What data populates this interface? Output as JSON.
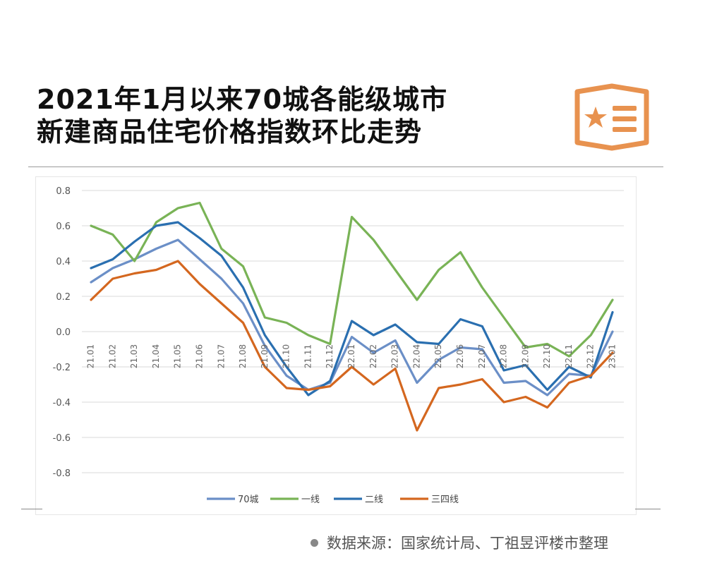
{
  "header": {
    "title_line1": "2021年1月以来70城各能级城市",
    "title_line2": "新建商品住宅价格指数环比走势"
  },
  "logo": {
    "icon": "star-list-badge-icon",
    "color": "#e8924f"
  },
  "source": {
    "text": "数据来源：国家统计局、丁祖昱评楼市整理"
  },
  "chart_data": {
    "type": "line",
    "title": "2021年1月以来70城各能级城市新建商品住宅价格指数环比走势",
    "xlabel": "",
    "ylabel": "",
    "ylim": [
      -0.8,
      0.8
    ],
    "yticks": [
      "0.8",
      "0.6",
      "0.4",
      "0.2",
      "0.0",
      "-0.2",
      "-0.4",
      "-0.6",
      "-0.8"
    ],
    "ytick_values": [
      0.8,
      0.6,
      0.4,
      0.2,
      0.0,
      -0.2,
      -0.4,
      -0.6,
      -0.8
    ],
    "categories": [
      "21.01",
      "21.02",
      "21.03",
      "21.04",
      "21.05",
      "21.06",
      "21.07",
      "21.08",
      "21.09",
      "21.10",
      "21.11",
      "21.12",
      "22.01",
      "22.02",
      "22.03",
      "22.04",
      "22.05",
      "22.06",
      "22.07",
      "22.08",
      "22.09",
      "22.10",
      "22.11",
      "22.12",
      "23.01"
    ],
    "legend_position": "bottom",
    "series": [
      {
        "name": "70城",
        "color": "#6b8fc7",
        "values": [
          0.28,
          0.36,
          0.41,
          0.47,
          0.52,
          0.41,
          0.3,
          0.16,
          -0.08,
          -0.25,
          -0.33,
          -0.29,
          -0.03,
          -0.12,
          -0.05,
          -0.29,
          -0.16,
          -0.09,
          -0.1,
          -0.29,
          -0.28,
          -0.36,
          -0.24,
          -0.25,
          0.0
        ]
      },
      {
        "name": "一线",
        "color": "#79b356",
        "values": [
          0.6,
          0.55,
          0.4,
          0.62,
          0.7,
          0.73,
          0.47,
          0.37,
          0.08,
          0.05,
          -0.02,
          -0.07,
          0.65,
          0.52,
          0.35,
          0.18,
          0.35,
          0.45,
          0.25,
          0.08,
          -0.09,
          -0.07,
          -0.14,
          -0.02,
          0.18
        ]
      },
      {
        "name": "二线",
        "color": "#2a6fb0",
        "values": [
          0.36,
          0.41,
          0.51,
          0.6,
          0.62,
          0.53,
          0.43,
          0.25,
          -0.02,
          -0.2,
          -0.36,
          -0.28,
          0.06,
          -0.02,
          0.04,
          -0.06,
          -0.07,
          0.07,
          0.03,
          -0.22,
          -0.19,
          -0.33,
          -0.2,
          -0.26,
          0.11
        ]
      },
      {
        "name": "三四线",
        "color": "#d4671f",
        "values": [
          0.18,
          0.3,
          0.33,
          0.35,
          0.4,
          0.27,
          0.16,
          0.05,
          -0.2,
          -0.32,
          -0.33,
          -0.31,
          -0.2,
          -0.3,
          -0.21,
          -0.56,
          -0.32,
          -0.3,
          -0.27,
          -0.4,
          -0.37,
          -0.43,
          -0.29,
          -0.25,
          -0.12
        ]
      }
    ]
  }
}
